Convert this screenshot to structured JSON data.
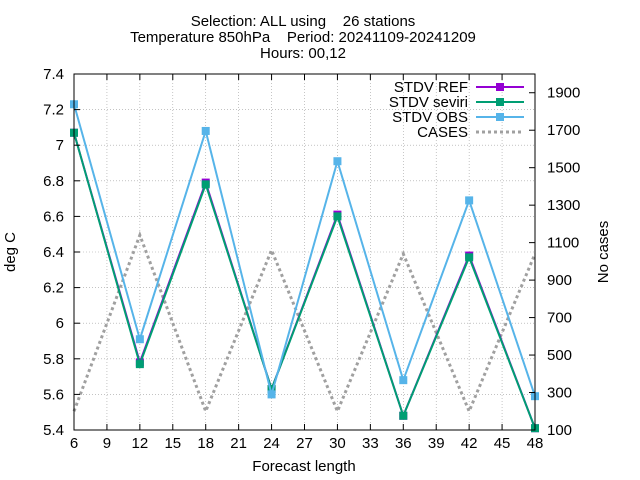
{
  "title_lines": [
    "Selection: ALL using    26 stations",
    "Temperature 850hPa    Period: 20241109-20241209",
    "Hours: 00,12"
  ],
  "chart_data": {
    "type": "line",
    "title": "Selection: ALL using    26 stations / Temperature 850hPa    Period: 20241109-20241209 / Hours: 00,12",
    "xlabel": "Forecast length",
    "ylabel": "deg C",
    "y2label": "No cases",
    "x": [
      6,
      12,
      18,
      24,
      30,
      36,
      42,
      48
    ],
    "xlim": [
      6,
      48
    ],
    "xticks": [
      6,
      9,
      12,
      15,
      18,
      21,
      24,
      27,
      30,
      33,
      36,
      39,
      42,
      45,
      48
    ],
    "ylim": [
      5.4,
      7.4
    ],
    "yticks": [
      "5.4",
      "5.6",
      "5.8",
      "6",
      "6.2",
      "6.4",
      "6.6",
      "6.8",
      "7",
      "7.2",
      "7.4"
    ],
    "y2lim": [
      100,
      2000
    ],
    "y2ticks": [
      100,
      300,
      500,
      700,
      900,
      1100,
      1300,
      1500,
      1700,
      1900
    ],
    "grid": true,
    "legend_position": "top-right",
    "series": [
      {
        "name": "STDV REF",
        "axis": "y",
        "color": "#9400d3",
        "style": "line-square",
        "values": [
          7.07,
          5.78,
          6.79,
          5.63,
          6.61,
          5.48,
          6.38,
          5.41
        ]
      },
      {
        "name": "STDV seviri",
        "axis": "y",
        "color": "#009e73",
        "style": "line-square",
        "values": [
          7.07,
          5.77,
          6.78,
          5.63,
          6.6,
          5.48,
          6.37,
          5.41
        ]
      },
      {
        "name": "STDV OBS",
        "axis": "y",
        "color": "#56b4e9",
        "style": "line-square",
        "values": [
          7.23,
          5.91,
          7.08,
          5.6,
          6.91,
          5.68,
          6.69,
          5.59
        ]
      },
      {
        "name": "CASES",
        "axis": "y2",
        "color": "#a0a0a0",
        "style": "dashed",
        "values": [
          200,
          1140,
          200,
          1060,
          200,
          1040,
          200,
          1040
        ]
      }
    ]
  }
}
